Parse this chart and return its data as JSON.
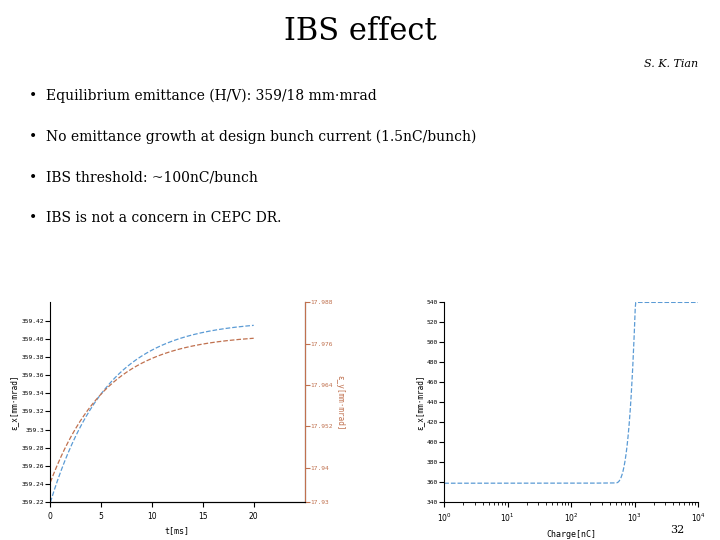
{
  "title": "IBS effect",
  "author": "S. K. Tian",
  "bullets": [
    "Equilibrium emittance (H/V): 359/18 mm·mrad",
    "No emittance growth at design bunch current (1.5nC/bunch)",
    "IBS threshold: ~100nC/bunch",
    "IBS is not a concern in CEPC DR."
  ],
  "page_number": "32",
  "background_color": "#ffffff",
  "title_fontsize": 22,
  "author_fontsize": 8,
  "bullet_fontsize": 10,
  "left_plot": {
    "xlabel": "t[ms]",
    "ylabel_left": "ε_x[mm·mrad]",
    "ylabel_right": "ε_y[mm·mrad]",
    "xlim": [
      0,
      25
    ],
    "ylim_left": [
      359.22,
      359.44
    ],
    "ylim_right": [
      17.93,
      17.98
    ],
    "color_blue": "#5b9bd5",
    "color_orange": "#c0714f"
  },
  "right_plot": {
    "xlabel": "Charge[nC]",
    "ylabel": "ε_x[mm·mrad]",
    "xlim_log": [
      1.0,
      10000.0
    ],
    "ylim": [
      340,
      540
    ],
    "color_blue": "#5b9bd5"
  }
}
